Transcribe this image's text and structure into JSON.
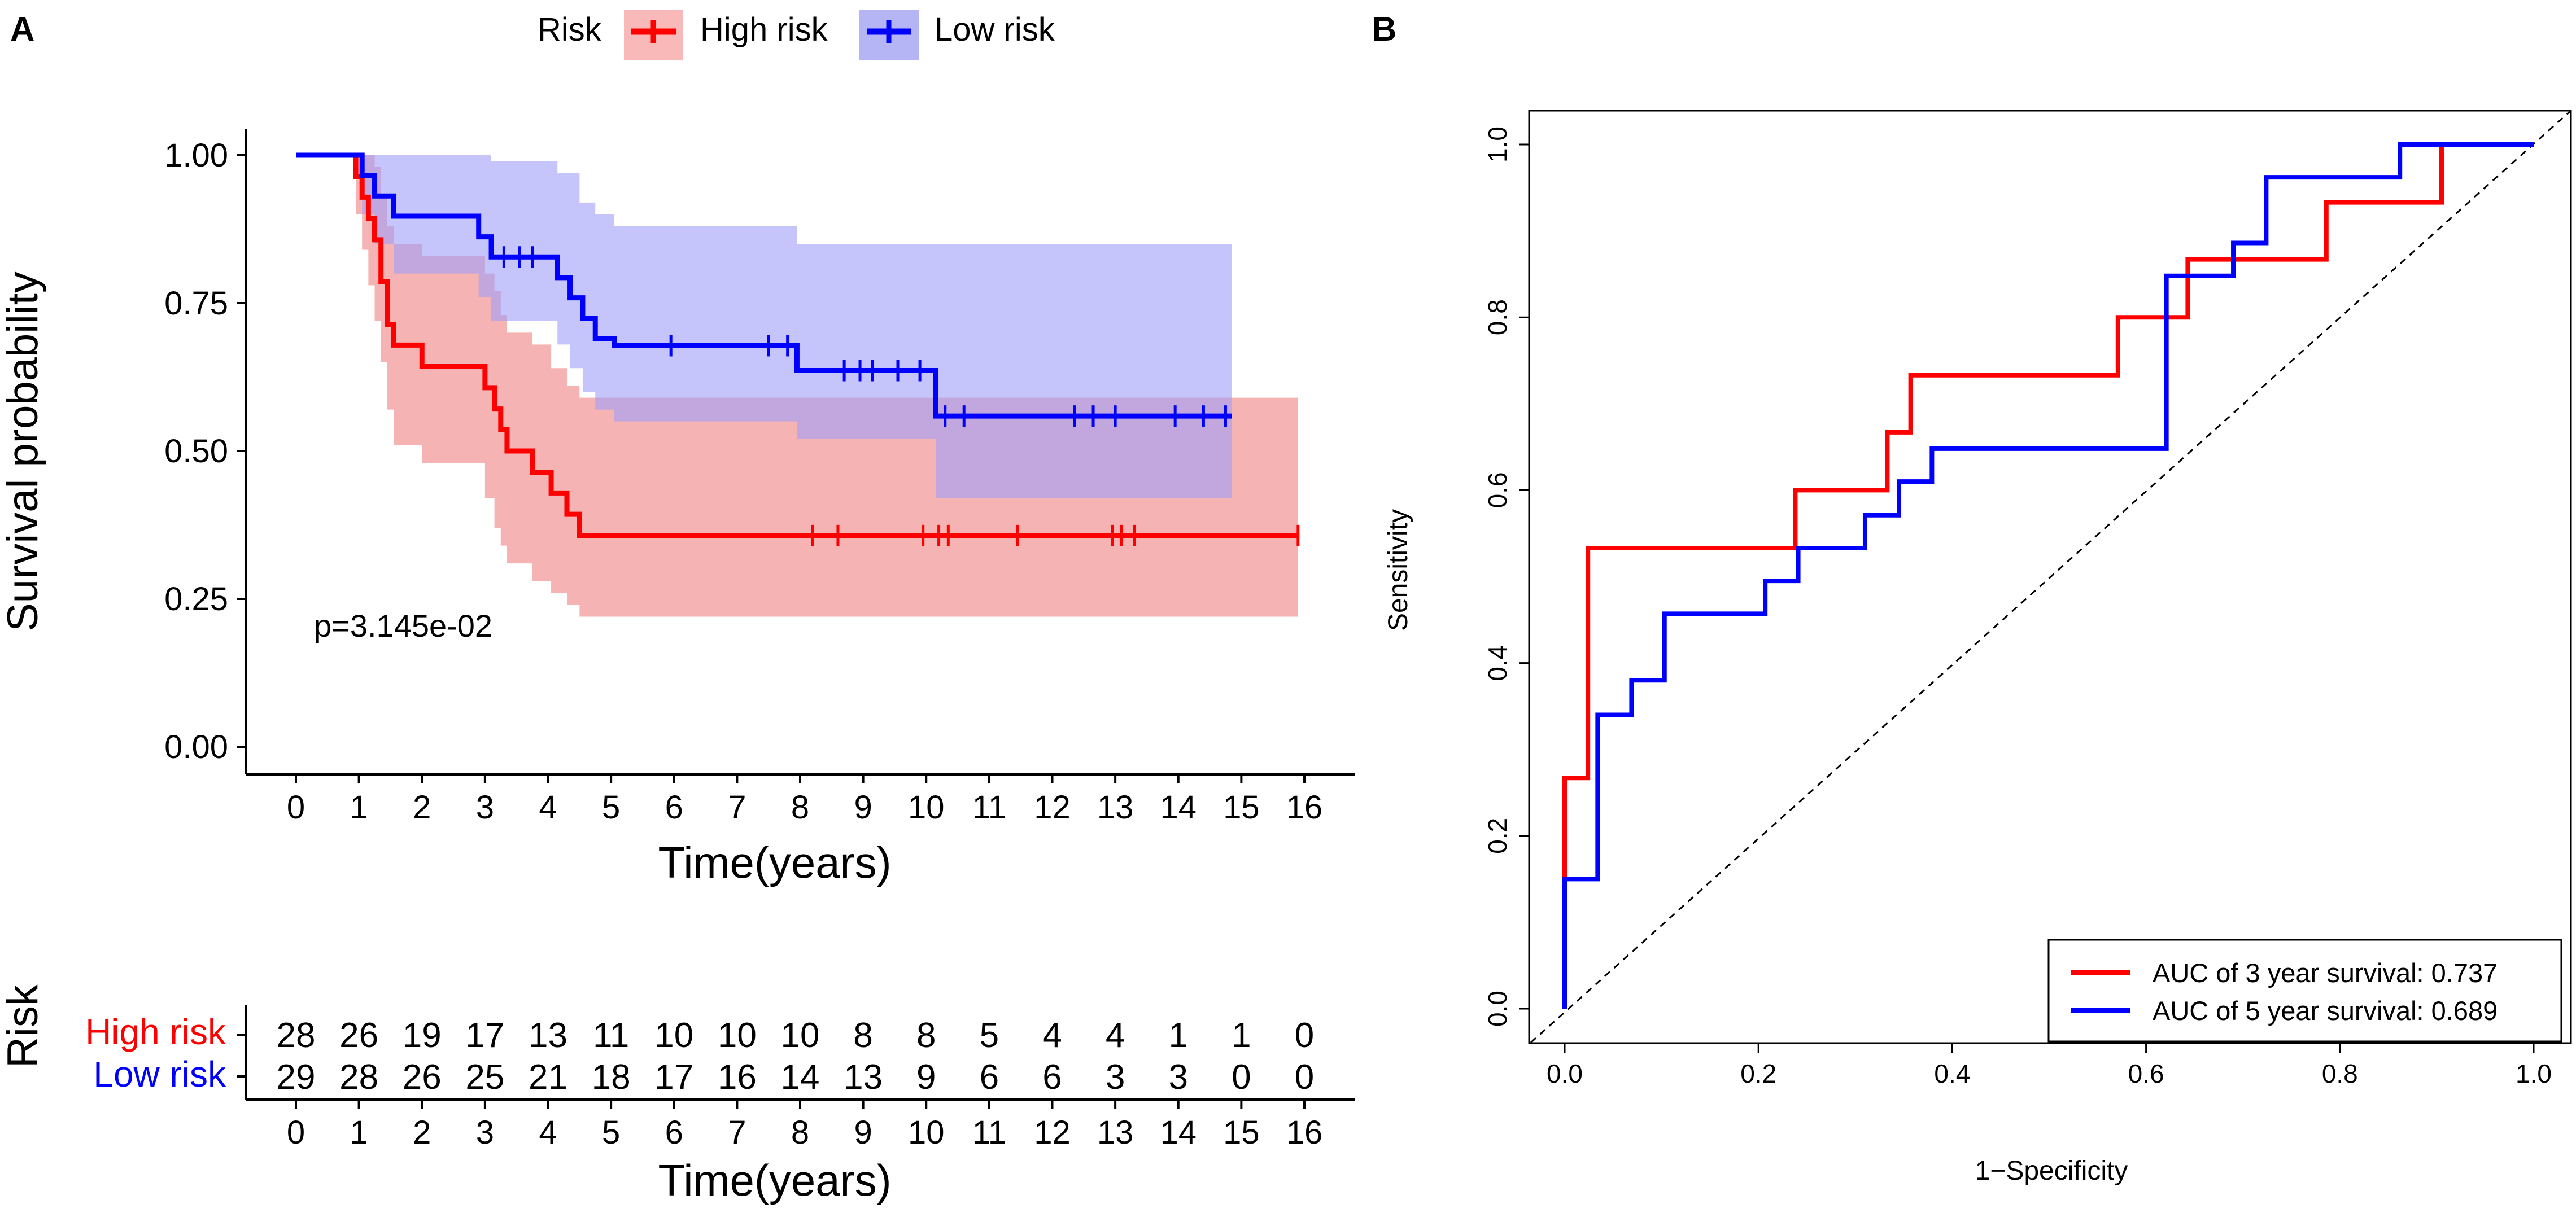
{
  "panels": {
    "a": {
      "label": "A"
    },
    "b": {
      "label": "B"
    }
  },
  "chart_data": [
    {
      "type": "line",
      "subtype": "kaplan-meier",
      "title": "",
      "xlabel": "Time(years)",
      "ylabel": "Survival probability",
      "xlim": [
        0,
        16
      ],
      "ylim": [
        0,
        1
      ],
      "xticks": [
        "0",
        "1",
        "2",
        "3",
        "4",
        "5",
        "6",
        "7",
        "8",
        "9",
        "10",
        "11",
        "12",
        "13",
        "14",
        "15",
        "16"
      ],
      "yticks": [
        "0.00",
        "0.25",
        "0.50",
        "0.75",
        "1.00"
      ],
      "legend": {
        "title": "Risk",
        "placement": "top",
        "entries": [
          "High risk",
          "Low risk"
        ]
      },
      "annotation": "p=3.145e-02",
      "series": [
        {
          "name": "High risk",
          "color": "#ff0000",
          "band_color": "#f08080",
          "steps": [
            [
              0,
              1
            ],
            [
              0.75,
              1
            ],
            [
              0.95,
              0.964
            ],
            [
              1.05,
              0.929
            ],
            [
              1.15,
              0.893
            ],
            [
              1.25,
              0.857
            ],
            [
              1.35,
              0.786
            ],
            [
              1.45,
              0.714
            ],
            [
              1.55,
              0.679
            ],
            [
              2.0,
              0.643
            ],
            [
              3.0,
              0.607
            ],
            [
              3.15,
              0.571
            ],
            [
              3.25,
              0.536
            ],
            [
              3.35,
              0.5
            ],
            [
              3.75,
              0.464
            ],
            [
              4.05,
              0.429
            ],
            [
              4.3,
              0.393
            ],
            [
              4.5,
              0.357
            ],
            [
              5.35,
              0.357
            ],
            [
              15.9,
              0.357
            ]
          ],
          "upper": [
            [
              0,
              1
            ],
            [
              0.75,
              1
            ],
            [
              0.95,
              1
            ],
            [
              1.25,
              0.98
            ],
            [
              1.35,
              0.93
            ],
            [
              1.45,
              0.88
            ],
            [
              1.55,
              0.85
            ],
            [
              2.0,
              0.83
            ],
            [
              3.0,
              0.8
            ],
            [
              3.15,
              0.77
            ],
            [
              3.25,
              0.73
            ],
            [
              3.35,
              0.7
            ],
            [
              3.75,
              0.68
            ],
            [
              4.05,
              0.64
            ],
            [
              4.3,
              0.61
            ],
            [
              4.5,
              0.59
            ],
            [
              15.9,
              0.59
            ]
          ],
          "lower": [
            [
              0,
              1
            ],
            [
              0.75,
              1
            ],
            [
              0.95,
              0.9
            ],
            [
              1.05,
              0.84
            ],
            [
              1.15,
              0.78
            ],
            [
              1.25,
              0.72
            ],
            [
              1.35,
              0.65
            ],
            [
              1.45,
              0.57
            ],
            [
              1.55,
              0.51
            ],
            [
              2.0,
              0.48
            ],
            [
              3.0,
              0.42
            ],
            [
              3.15,
              0.37
            ],
            [
              3.25,
              0.34
            ],
            [
              3.35,
              0.31
            ],
            [
              3.75,
              0.28
            ],
            [
              4.05,
              0.26
            ],
            [
              4.3,
              0.24
            ],
            [
              4.5,
              0.22
            ],
            [
              15.9,
              0.22
            ]
          ],
          "censor_times": [
            8.2,
            8.6,
            9.95,
            10.2,
            10.35,
            11.45,
            12.95,
            13.1,
            13.3,
            15.9
          ]
        },
        {
          "name": "Low risk",
          "color": "#0000ff",
          "band_color": "#9f9ff8",
          "steps": [
            [
              0,
              1
            ],
            [
              0.95,
              1
            ],
            [
              1.05,
              0.966
            ],
            [
              1.25,
              0.931
            ],
            [
              1.55,
              0.897
            ],
            [
              2.9,
              0.862
            ],
            [
              3.1,
              0.828
            ],
            [
              4.15,
              0.793
            ],
            [
              4.35,
              0.759
            ],
            [
              4.55,
              0.724
            ],
            [
              4.75,
              0.69
            ],
            [
              5.0,
              0.69
            ],
            [
              5.05,
              0.678
            ],
            [
              7.95,
              0.678
            ],
            [
              7.95,
              0.636
            ],
            [
              10.15,
              0.636
            ],
            [
              10.15,
              0.559
            ],
            [
              14.85,
              0.559
            ]
          ],
          "upper": [
            [
              0,
              1
            ],
            [
              0.95,
              1
            ],
            [
              2.9,
              1
            ],
            [
              3.1,
              0.99
            ],
            [
              4.15,
              0.97
            ],
            [
              4.5,
              0.92
            ],
            [
              4.75,
              0.9
            ],
            [
              5.05,
              0.88
            ],
            [
              7.95,
              0.88
            ],
            [
              7.95,
              0.85
            ],
            [
              14.85,
              0.85
            ]
          ],
          "lower": [
            [
              0,
              1
            ],
            [
              0.95,
              1
            ],
            [
              1.05,
              0.9
            ],
            [
              1.25,
              0.85
            ],
            [
              1.55,
              0.8
            ],
            [
              2.9,
              0.76
            ],
            [
              3.1,
              0.72
            ],
            [
              4.15,
              0.68
            ],
            [
              4.35,
              0.64
            ],
            [
              4.55,
              0.6
            ],
            [
              4.75,
              0.57
            ],
            [
              5.05,
              0.55
            ],
            [
              7.95,
              0.55
            ],
            [
              7.95,
              0.52
            ],
            [
              10.15,
              0.52
            ],
            [
              10.15,
              0.42
            ],
            [
              14.85,
              0.42
            ]
          ],
          "censor_times": [
            3.3,
            3.55,
            3.75,
            5.95,
            7.5,
            7.8,
            8.7,
            8.95,
            9.15,
            9.55,
            9.9,
            10.3,
            10.6,
            12.35,
            12.65,
            13.0,
            13.95,
            14.4,
            14.75
          ]
        }
      ],
      "risk_table": {
        "title": "Risk",
        "xlabel": "Time(years)",
        "times": [
          "0",
          "1",
          "2",
          "3",
          "4",
          "5",
          "6",
          "7",
          "8",
          "9",
          "10",
          "11",
          "12",
          "13",
          "14",
          "15",
          "16"
        ],
        "rows": [
          {
            "label": "High risk",
            "color": "#ff0000",
            "values": [
              "28",
              "26",
              "19",
              "17",
              "13",
              "11",
              "10",
              "10",
              "10",
              "8",
              "8",
              "5",
              "4",
              "4",
              "1",
              "1",
              "0"
            ]
          },
          {
            "label": "Low risk",
            "color": "#0000ff",
            "values": [
              "29",
              "28",
              "26",
              "25",
              "21",
              "18",
              "17",
              "16",
              "14",
              "13",
              "9",
              "6",
              "6",
              "3",
              "3",
              "0",
              "0"
            ]
          }
        ]
      }
    },
    {
      "type": "line",
      "subtype": "roc",
      "title": "",
      "xlabel": "1−Specificity",
      "ylabel": "Sensitivity",
      "xlim": [
        0,
        1
      ],
      "ylim": [
        0,
        1
      ],
      "xticks": [
        "0.0",
        "0.2",
        "0.4",
        "0.6",
        "0.8",
        "1.0"
      ],
      "yticks": [
        "0.0",
        "0.2",
        "0.4",
        "0.6",
        "0.8",
        "1.0"
      ],
      "legend": {
        "placement": "bottom-right",
        "entries": [
          "AUC of 3 year survival:  0.737",
          "AUC of 5 year survival:  0.689"
        ]
      },
      "series": [
        {
          "name": "AUC of 3 year survival",
          "auc": 0.737,
          "color": "#ff0000",
          "points": [
            [
              0,
              0
            ],
            [
              0,
              0.267
            ],
            [
              0.024,
              0.267
            ],
            [
              0.024,
              0.533
            ],
            [
              0.238,
              0.533
            ],
            [
              0.238,
              0.6
            ],
            [
              0.333,
              0.6
            ],
            [
              0.333,
              0.667
            ],
            [
              0.357,
              0.667
            ],
            [
              0.357,
              0.733
            ],
            [
              0.571,
              0.733
            ],
            [
              0.571,
              0.8
            ],
            [
              0.643,
              0.8
            ],
            [
              0.643,
              0.867
            ],
            [
              0.786,
              0.867
            ],
            [
              0.786,
              0.933
            ],
            [
              0.905,
              0.933
            ],
            [
              0.905,
              1.0
            ],
            [
              1.0,
              1.0
            ]
          ]
        },
        {
          "name": "AUC of 5 year survival",
          "auc": 0.689,
          "color": "#0000ff",
          "points": [
            [
              0,
              0
            ],
            [
              0,
              0.15
            ],
            [
              0.034,
              0.15
            ],
            [
              0.034,
              0.34
            ],
            [
              0.069,
              0.34
            ],
            [
              0.069,
              0.38
            ],
            [
              0.103,
              0.38
            ],
            [
              0.103,
              0.457
            ],
            [
              0.207,
              0.457
            ],
            [
              0.207,
              0.495
            ],
            [
              0.241,
              0.495
            ],
            [
              0.241,
              0.533
            ],
            [
              0.31,
              0.533
            ],
            [
              0.31,
              0.571
            ],
            [
              0.345,
              0.571
            ],
            [
              0.345,
              0.61
            ],
            [
              0.379,
              0.61
            ],
            [
              0.379,
              0.648
            ],
            [
              0.621,
              0.648
            ],
            [
              0.621,
              0.848
            ],
            [
              0.69,
              0.848
            ],
            [
              0.69,
              0.886
            ],
            [
              0.724,
              0.886
            ],
            [
              0.724,
              0.962
            ],
            [
              0.862,
              0.962
            ],
            [
              0.862,
              1.0
            ],
            [
              1.0,
              1.0
            ]
          ]
        }
      ],
      "reference_line": {
        "style": "dashed",
        "from": [
          0,
          0
        ],
        "to": [
          1,
          1
        ]
      }
    }
  ]
}
